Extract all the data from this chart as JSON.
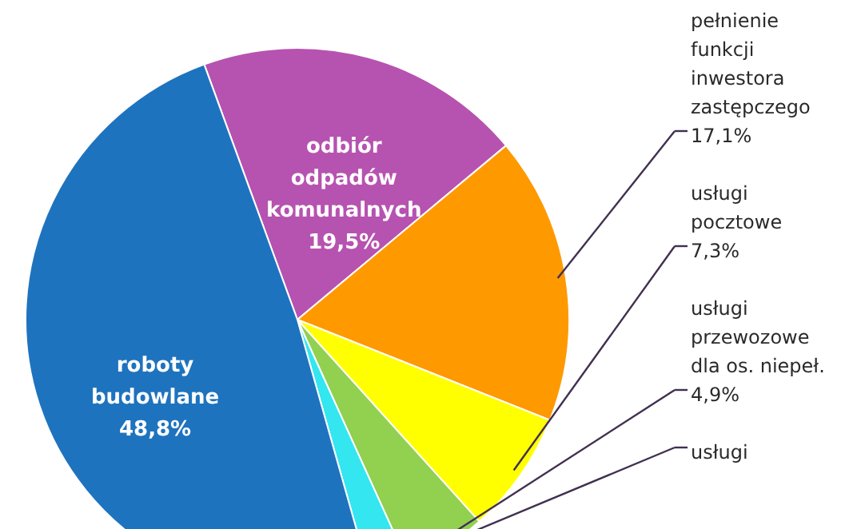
{
  "chart_data": {
    "type": "pie",
    "categories": [
      "odbiór odpadów komunalnych",
      "pełnienie funkcji inwestora zastępczego",
      "usługi pocztowe",
      "usługi przewozowe dla os. niepeł.",
      "usługi",
      "roboty budowlane"
    ],
    "values": [
      19.5,
      17.1,
      7.3,
      4.9,
      2.4,
      48.8
    ],
    "value_labels": [
      "19,5%",
      "17,1%",
      "7,3%",
      "4,9%",
      null,
      "48,8%"
    ],
    "colors": [
      "#b653b0",
      "#ff9900",
      "#ffff00",
      "#92d050",
      "#33e6f0",
      "#1e73be"
    ]
  }
}
